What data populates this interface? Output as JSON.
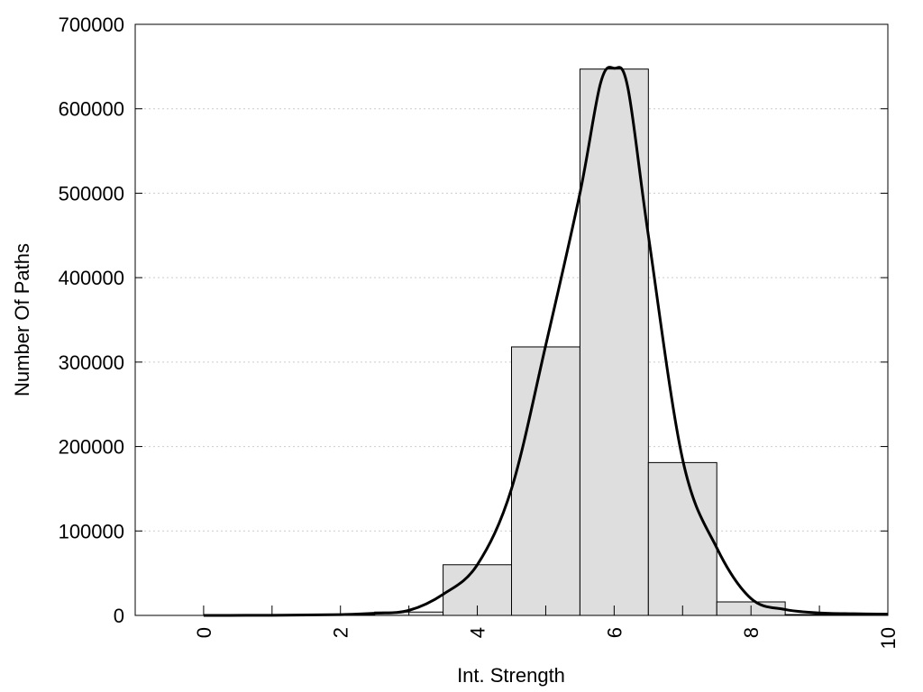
{
  "chart_data": {
    "type": "bar",
    "xlabel": "Int. Strength",
    "ylabel": "Number Of Paths",
    "xlim": [
      -1,
      10
    ],
    "ylim": [
      0,
      700000
    ],
    "x_ticks": [
      0,
      2,
      4,
      6,
      8,
      10
    ],
    "y_ticks": [
      0,
      100000,
      200000,
      300000,
      400000,
      500000,
      600000,
      700000
    ],
    "grid": "horizontal dotted",
    "bar_width": 1,
    "bars": [
      {
        "x": 0,
        "value": 0
      },
      {
        "x": 1,
        "value": 0
      },
      {
        "x": 2,
        "value": 500
      },
      {
        "x": 3,
        "value": 4000
      },
      {
        "x": 4,
        "value": 60000
      },
      {
        "x": 5,
        "value": 318000
      },
      {
        "x": 6,
        "value": 647000
      },
      {
        "x": 7,
        "value": 181000
      },
      {
        "x": 8,
        "value": 16000
      },
      {
        "x": 9,
        "value": 1000
      },
      {
        "x": 10,
        "value": 0
      }
    ],
    "curve": {
      "points": [
        [
          0,
          0
        ],
        [
          1,
          200
        ],
        [
          2,
          1000
        ],
        [
          2.5,
          2500
        ],
        [
          3,
          6000
        ],
        [
          3.5,
          25000
        ],
        [
          4,
          60000
        ],
        [
          4.5,
          150000
        ],
        [
          5,
          320000
        ],
        [
          5.5,
          500000
        ],
        [
          5.8,
          630000
        ],
        [
          6,
          648000
        ],
        [
          6.2,
          625000
        ],
        [
          6.5,
          450000
        ],
        [
          7,
          185000
        ],
        [
          7.5,
          80000
        ],
        [
          8,
          20000
        ],
        [
          8.5,
          7000
        ],
        [
          9,
          3000
        ],
        [
          9.5,
          2000
        ],
        [
          10,
          1500
        ]
      ]
    },
    "colors": {
      "bar_fill": "#dedede",
      "bar_stroke": "#000000",
      "curve": "#000000",
      "grid": "#cccccc"
    }
  }
}
